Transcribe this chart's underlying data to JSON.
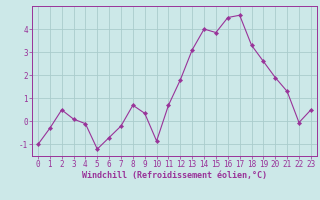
{
  "x": [
    0,
    1,
    2,
    3,
    4,
    5,
    6,
    7,
    8,
    9,
    10,
    11,
    12,
    13,
    14,
    15,
    16,
    17,
    18,
    19,
    20,
    21,
    22,
    23
  ],
  "y": [
    -1.0,
    -0.3,
    0.5,
    0.1,
    -0.1,
    -1.2,
    -0.7,
    -0.2,
    0.7,
    0.35,
    -0.85,
    0.7,
    1.8,
    3.1,
    4.0,
    3.85,
    4.5,
    4.6,
    3.3,
    2.6,
    1.9,
    1.3,
    -0.05,
    0.5
  ],
  "line_color": "#993399",
  "marker": "D",
  "marker_size": 2.2,
  "bg_color": "#cce8e8",
  "grid_color": "#aacccc",
  "axis_color": "#993399",
  "xlabel": "Windchill (Refroidissement éolien,°C)",
  "xlabel_fontsize": 6.0,
  "tick_fontsize": 5.5,
  "ylim": [
    -1.5,
    5.0
  ],
  "yticks": [
    -1,
    0,
    1,
    2,
    3,
    4
  ],
  "xticks": [
    0,
    1,
    2,
    3,
    4,
    5,
    6,
    7,
    8,
    9,
    10,
    11,
    12,
    13,
    14,
    15,
    16,
    17,
    18,
    19,
    20,
    21,
    22,
    23
  ]
}
